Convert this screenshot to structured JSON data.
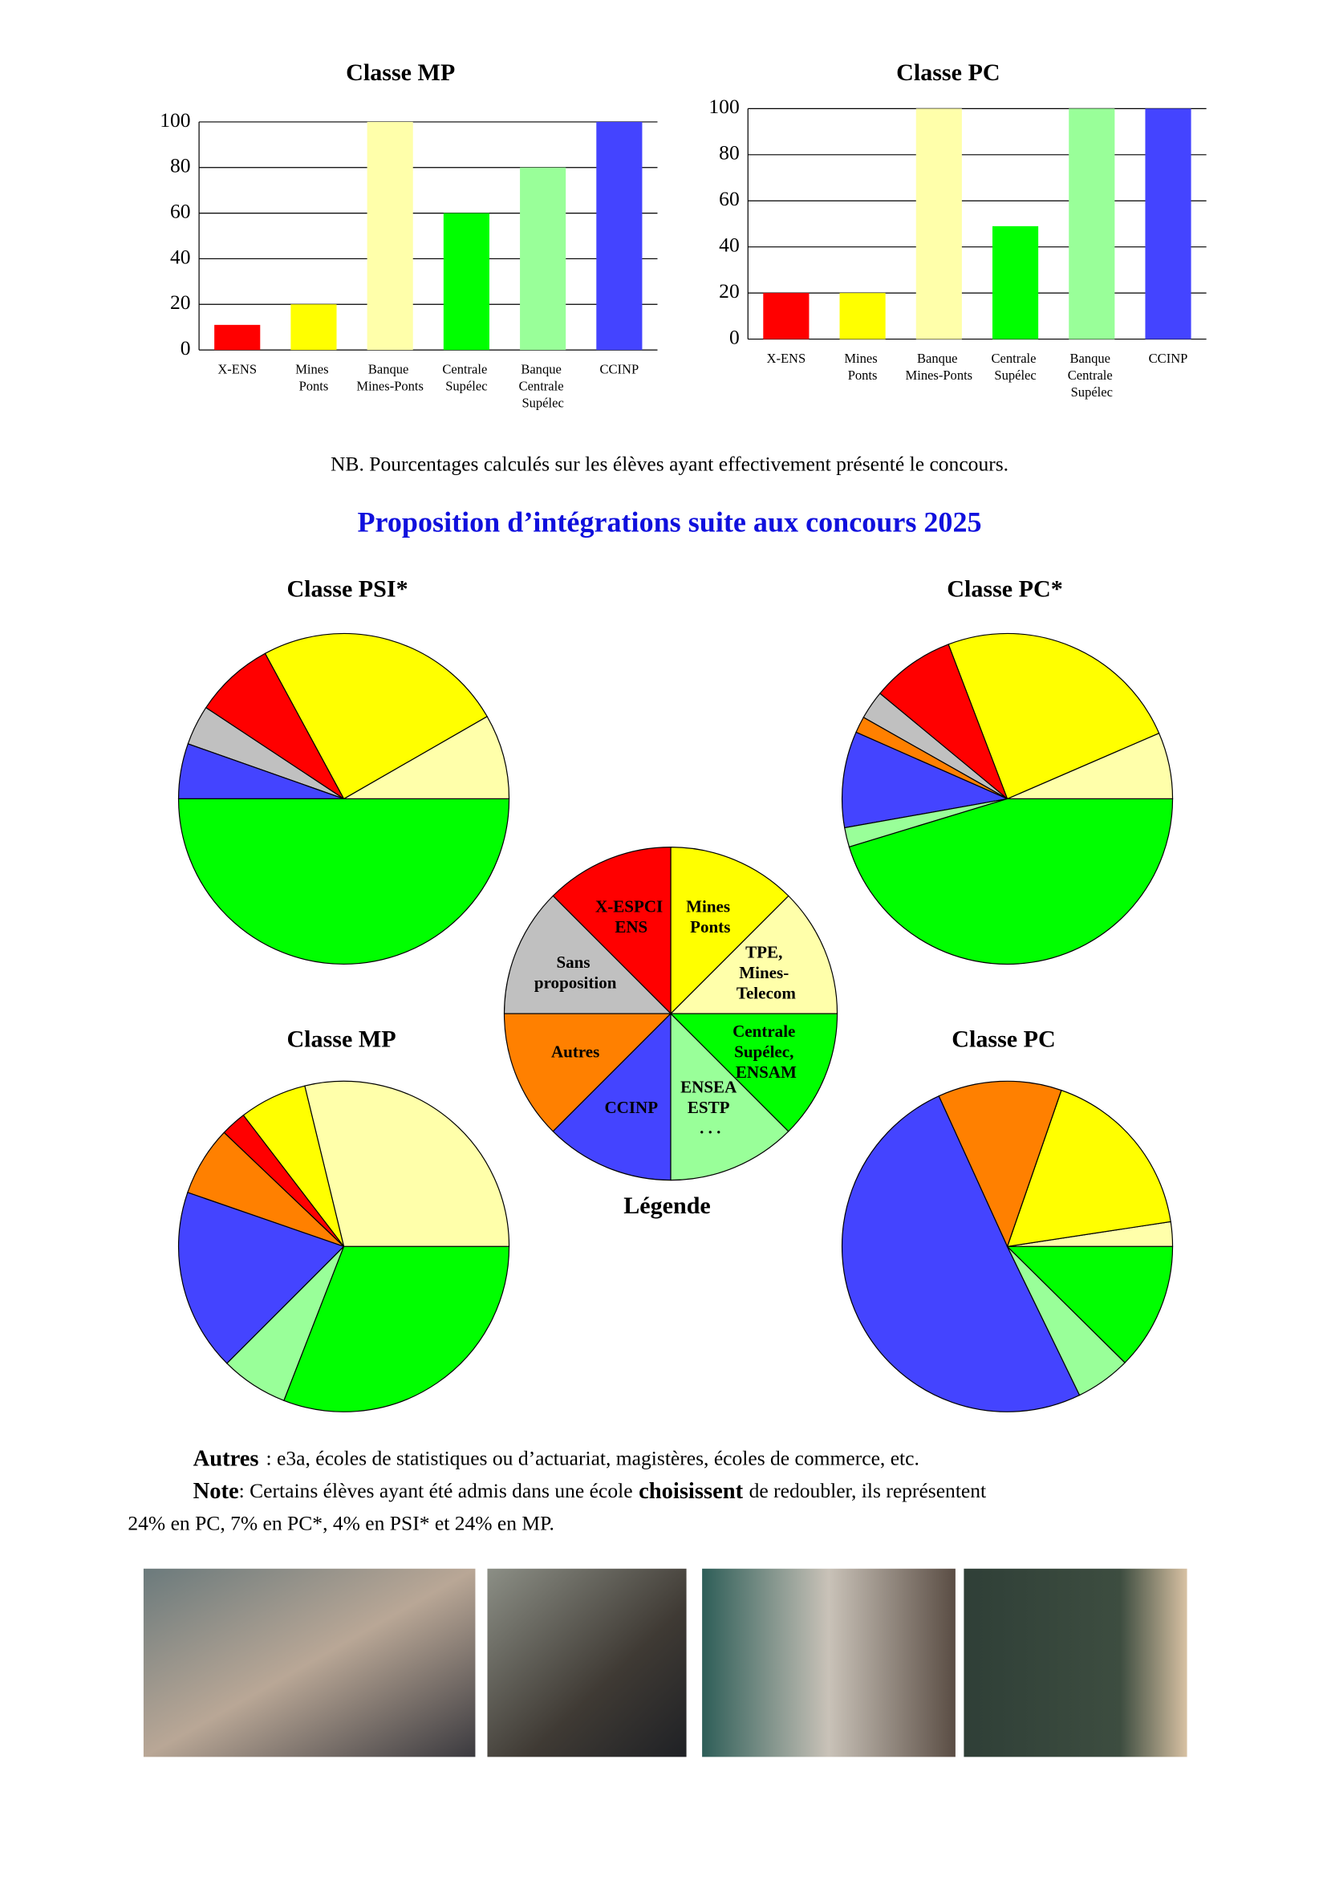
{
  "chart_data": [
    {
      "type": "bar",
      "title": "Classe MP",
      "categories": [
        "X-ENS",
        "Mines\nPonts",
        "Banque\nMines-Ponts",
        "Centrale\nSupélec",
        "Banque\nCentrale\nSupélec",
        "CCINP"
      ],
      "values": [
        11,
        20,
        100,
        60,
        80,
        100
      ],
      "colors": [
        "#ff0000",
        "#ffff00",
        "#ffffaa",
        "#00ff00",
        "#99ff99",
        "#4444ff"
      ],
      "ylim": [
        0,
        100
      ],
      "yticks": [
        0,
        20,
        40,
        60,
        80,
        100
      ],
      "grid": true
    },
    {
      "type": "bar",
      "title": "Classe PC",
      "categories": [
        "X-ENS",
        "Mines\nPonts",
        "Banque\nMines-Ponts",
        "Centrale\nSupélec",
        "Banque\nCentrale\nSupélec",
        "CCINP"
      ],
      "values": [
        20,
        20,
        100,
        49,
        100,
        100
      ],
      "colors": [
        "#ff0000",
        "#ffff00",
        "#ffffaa",
        "#00ff00",
        "#99ff99",
        "#4444ff"
      ],
      "ylim": [
        0,
        100
      ],
      "yticks": [
        0,
        20,
        40,
        60,
        80,
        100
      ],
      "grid": true
    },
    {
      "type": "pie",
      "title": "Classe PSI*",
      "values": [
        8.3,
        24.6,
        7.8,
        3.9,
        0,
        5.4,
        0,
        50
      ],
      "colors": [
        "#ffffaa",
        "#ffff00",
        "#ff0000",
        "#c0c0c0",
        "#ff8000",
        "#4444ff",
        "#99ff99",
        "#00ff00"
      ]
    },
    {
      "type": "pie",
      "title": "Classe PC*",
      "values": [
        6.5,
        24.3,
        8.2,
        2.8,
        1.6,
        9.4,
        1.9,
        45.3
      ],
      "colors": [
        "#ffffaa",
        "#ffff00",
        "#ff0000",
        "#c0c0c0",
        "#ff8000",
        "#4444ff",
        "#99ff99",
        "#00ff00"
      ]
    },
    {
      "type": "pie",
      "title": "Légende",
      "categories": [
        "TPE,\nMines-\nTelecom",
        "Mines\nPonts",
        "X-ESPCI\nENS",
        "Sans\nproposition",
        "Autres",
        "CCINP",
        "ENSEA\nESTP\n. . .",
        "Centrale\nSupélec,\nENSAM"
      ],
      "values": [
        12.5,
        12.5,
        12.5,
        12.5,
        12.5,
        12.5,
        12.5,
        12.5
      ],
      "colors": [
        "#ffffaa",
        "#ffff00",
        "#ff0000",
        "#c0c0c0",
        "#ff8000",
        "#4444ff",
        "#99ff99",
        "#00ff00"
      ]
    },
    {
      "type": "pie",
      "title": "Classe MP",
      "values": [
        28.8,
        6.6,
        2.5,
        0,
        6.8,
        17.8,
        6.6,
        30.9
      ],
      "colors": [
        "#ffffaa",
        "#ffff00",
        "#ff0000",
        "#c0c0c0",
        "#ff8000",
        "#4444ff",
        "#99ff99",
        "#00ff00"
      ]
    },
    {
      "type": "pie",
      "title": "Classe PC",
      "values": [
        2.4,
        17.3,
        0,
        0,
        12.1,
        50.4,
        5.4,
        12.4
      ],
      "colors": [
        "#ffffaa",
        "#ffff00",
        "#ff0000",
        "#c0c0c0",
        "#ff8000",
        "#4444ff",
        "#99ff99",
        "#00ff00"
      ]
    }
  ],
  "nb": "NB. Pourcentages calculés sur les élèves ayant effectivement présenté le concours.",
  "heading": "Proposition d’intégrations suite aux concours 2025",
  "autres": {
    "term": "Autres",
    "text": ": e3a, écoles de statistiques ou d’actuariat, magistères, écoles de commerce, etc."
  },
  "note": {
    "term": "Note",
    "text1": ": Certains élèves ayant été admis dans une école",
    "emph": "choisissent",
    "text2": "de redoubler, ils représentent",
    "line2": "24% en PC, 7% en PC*, 4% en PSI* et 24% en MP."
  }
}
